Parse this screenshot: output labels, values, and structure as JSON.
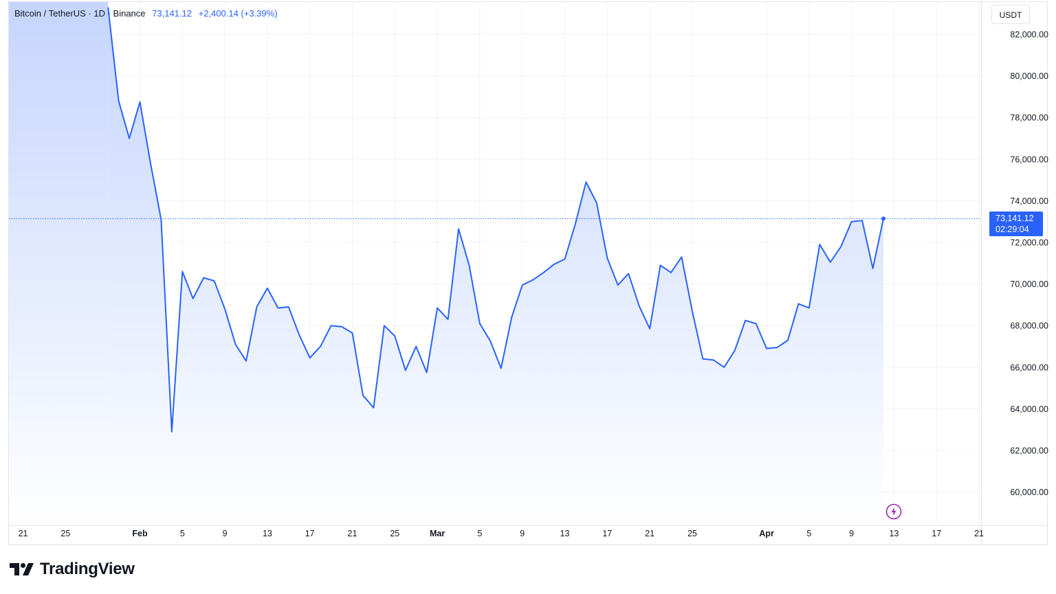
{
  "header": {
    "symbol": "Bitcoin / TetherUS · 1D · Binance",
    "last_price": "73,141.12",
    "change": "+2,400.14 (+3.39%)"
  },
  "price_axis": {
    "currency": "USDT",
    "last_price_label": "73,141.12",
    "countdown": "02:29:04"
  },
  "brand": {
    "name": "TradingView"
  },
  "icons": {
    "alert": "lightning-icon",
    "logo": "tradingview-logo-icon"
  },
  "colors": {
    "line": "#2962ff",
    "fill_top": "#c5d5fd",
    "fill_bottom": "#ffffff",
    "grid": "#f0f3fa",
    "purple": "#9c27b0"
  },
  "chart_data": {
    "type": "area",
    "grid": true,
    "y_labels": [
      "82,000.00",
      "80,000.00",
      "78,000.00",
      "76,000.00",
      "74,000.00",
      "72,000.00",
      "70,000.00",
      "68,000.00",
      "66,000.00",
      "64,000.00",
      "62,000.00",
      "60,000.00"
    ],
    "y_ticks": [
      82000,
      80000,
      78000,
      76000,
      74000,
      72000,
      70000,
      68000,
      66000,
      64000,
      62000,
      60000
    ],
    "x_labels": [
      {
        "label": "21",
        "day": -11,
        "bold": false
      },
      {
        "label": "25",
        "day": -7,
        "bold": false
      },
      {
        "label": "Feb",
        "day": 0,
        "bold": true
      },
      {
        "label": "5",
        "day": 4,
        "bold": false
      },
      {
        "label": "9",
        "day": 8,
        "bold": false
      },
      {
        "label": "13",
        "day": 12,
        "bold": false
      },
      {
        "label": "17",
        "day": 16,
        "bold": false
      },
      {
        "label": "21",
        "day": 20,
        "bold": false
      },
      {
        "label": "25",
        "day": 24,
        "bold": false
      },
      {
        "label": "Mar",
        "day": 28,
        "bold": true
      },
      {
        "label": "5",
        "day": 32,
        "bold": false
      },
      {
        "label": "9",
        "day": 36,
        "bold": false
      },
      {
        "label": "13",
        "day": 40,
        "bold": false
      },
      {
        "label": "17",
        "day": 44,
        "bold": false
      },
      {
        "label": "21",
        "day": 48,
        "bold": false
      },
      {
        "label": "25",
        "day": 52,
        "bold": false
      },
      {
        "label": "Apr",
        "day": 59,
        "bold": true
      },
      {
        "label": "5",
        "day": 63,
        "bold": false
      },
      {
        "label": "9",
        "day": 67,
        "bold": false
      },
      {
        "label": "13",
        "day": 71,
        "bold": false
      },
      {
        "label": "17",
        "day": 75,
        "bold": false
      },
      {
        "label": "21",
        "day": 79,
        "bold": false
      }
    ],
    "series": [
      {
        "values": [
          {
            "x": "Jan 29",
            "y": 83300
          },
          {
            "x": "Jan 30",
            "y": 78800
          },
          {
            "x": "Jan 31",
            "y": 77000
          },
          {
            "x": "Feb 1",
            "y": 78750
          },
          {
            "x": "Feb 2",
            "y": 75800
          },
          {
            "x": "Feb 3",
            "y": 73100
          },
          {
            "x": "Feb 4",
            "y": 62900
          },
          {
            "x": "Feb 5",
            "y": 70600
          },
          {
            "x": "Feb 6",
            "y": 69300
          },
          {
            "x": "Feb 7",
            "y": 70300
          },
          {
            "x": "Feb 8",
            "y": 70150
          },
          {
            "x": "Feb 9",
            "y": 68800
          },
          {
            "x": "Feb 10",
            "y": 67100
          },
          {
            "x": "Feb 11",
            "y": 66300
          },
          {
            "x": "Feb 12",
            "y": 68900
          },
          {
            "x": "Feb 13",
            "y": 69800
          },
          {
            "x": "Feb 14",
            "y": 68850
          },
          {
            "x": "Feb 15",
            "y": 68900
          },
          {
            "x": "Feb 16",
            "y": 67550
          },
          {
            "x": "Feb 17",
            "y": 66450
          },
          {
            "x": "Feb 18",
            "y": 67000
          },
          {
            "x": "Feb 19",
            "y": 68000
          },
          {
            "x": "Feb 20",
            "y": 67950
          },
          {
            "x": "Feb 21",
            "y": 67650
          },
          {
            "x": "Feb 22",
            "y": 64650
          },
          {
            "x": "Feb 23",
            "y": 64050
          },
          {
            "x": "Feb 24",
            "y": 68000
          },
          {
            "x": "Feb 25",
            "y": 67500
          },
          {
            "x": "Feb 26",
            "y": 65850
          },
          {
            "x": "Feb 27",
            "y": 67000
          },
          {
            "x": "Feb 28",
            "y": 65750
          },
          {
            "x": "Mar 1",
            "y": 68850
          },
          {
            "x": "Mar 2",
            "y": 68300
          },
          {
            "x": "Mar 3",
            "y": 72650
          },
          {
            "x": "Mar 4",
            "y": 70900
          },
          {
            "x": "Mar 5",
            "y": 68100
          },
          {
            "x": "Mar 6",
            "y": 67250
          },
          {
            "x": "Mar 7",
            "y": 65950
          },
          {
            "x": "Mar 8",
            "y": 68400
          },
          {
            "x": "Mar 9",
            "y": 69950
          },
          {
            "x": "Mar 10",
            "y": 70200
          },
          {
            "x": "Mar 11",
            "y": 70550
          },
          {
            "x": "Mar 12",
            "y": 70950
          },
          {
            "x": "Mar 13",
            "y": 71200
          },
          {
            "x": "Mar 14",
            "y": 72900
          },
          {
            "x": "Mar 15",
            "y": 74900
          },
          {
            "x": "Mar 16",
            "y": 73900
          },
          {
            "x": "Mar 17",
            "y": 71250
          },
          {
            "x": "Mar 18",
            "y": 69950
          },
          {
            "x": "Mar 19",
            "y": 70500
          },
          {
            "x": "Mar 20",
            "y": 68950
          },
          {
            "x": "Mar 21",
            "y": 67850
          },
          {
            "x": "Mar 22",
            "y": 70900
          },
          {
            "x": "Mar 23",
            "y": 70550
          },
          {
            "x": "Mar 24",
            "y": 71300
          },
          {
            "x": "Mar 25",
            "y": 68700
          },
          {
            "x": "Mar 26",
            "y": 66400
          },
          {
            "x": "Mar 27",
            "y": 66350
          },
          {
            "x": "Mar 28",
            "y": 66000
          },
          {
            "x": "Mar 29",
            "y": 66800
          },
          {
            "x": "Mar 30",
            "y": 68250
          },
          {
            "x": "Mar 31",
            "y": 68100
          },
          {
            "x": "Apr 1",
            "y": 66900
          },
          {
            "x": "Apr 2",
            "y": 66950
          },
          {
            "x": "Apr 3",
            "y": 67300
          },
          {
            "x": "Apr 4",
            "y": 69050
          },
          {
            "x": "Apr 5",
            "y": 68850
          },
          {
            "x": "Apr 6",
            "y": 71900
          },
          {
            "x": "Apr 7",
            "y": 71050
          },
          {
            "x": "Apr 8",
            "y": 71800
          },
          {
            "x": "Apr 9",
            "y": 73000
          },
          {
            "x": "Apr 10",
            "y": 73050
          },
          {
            "x": "Apr 11",
            "y": 70750
          },
          {
            "x": "Apr 12",
            "y": 73141.12
          }
        ]
      }
    ],
    "last_value": 73141.12
  }
}
